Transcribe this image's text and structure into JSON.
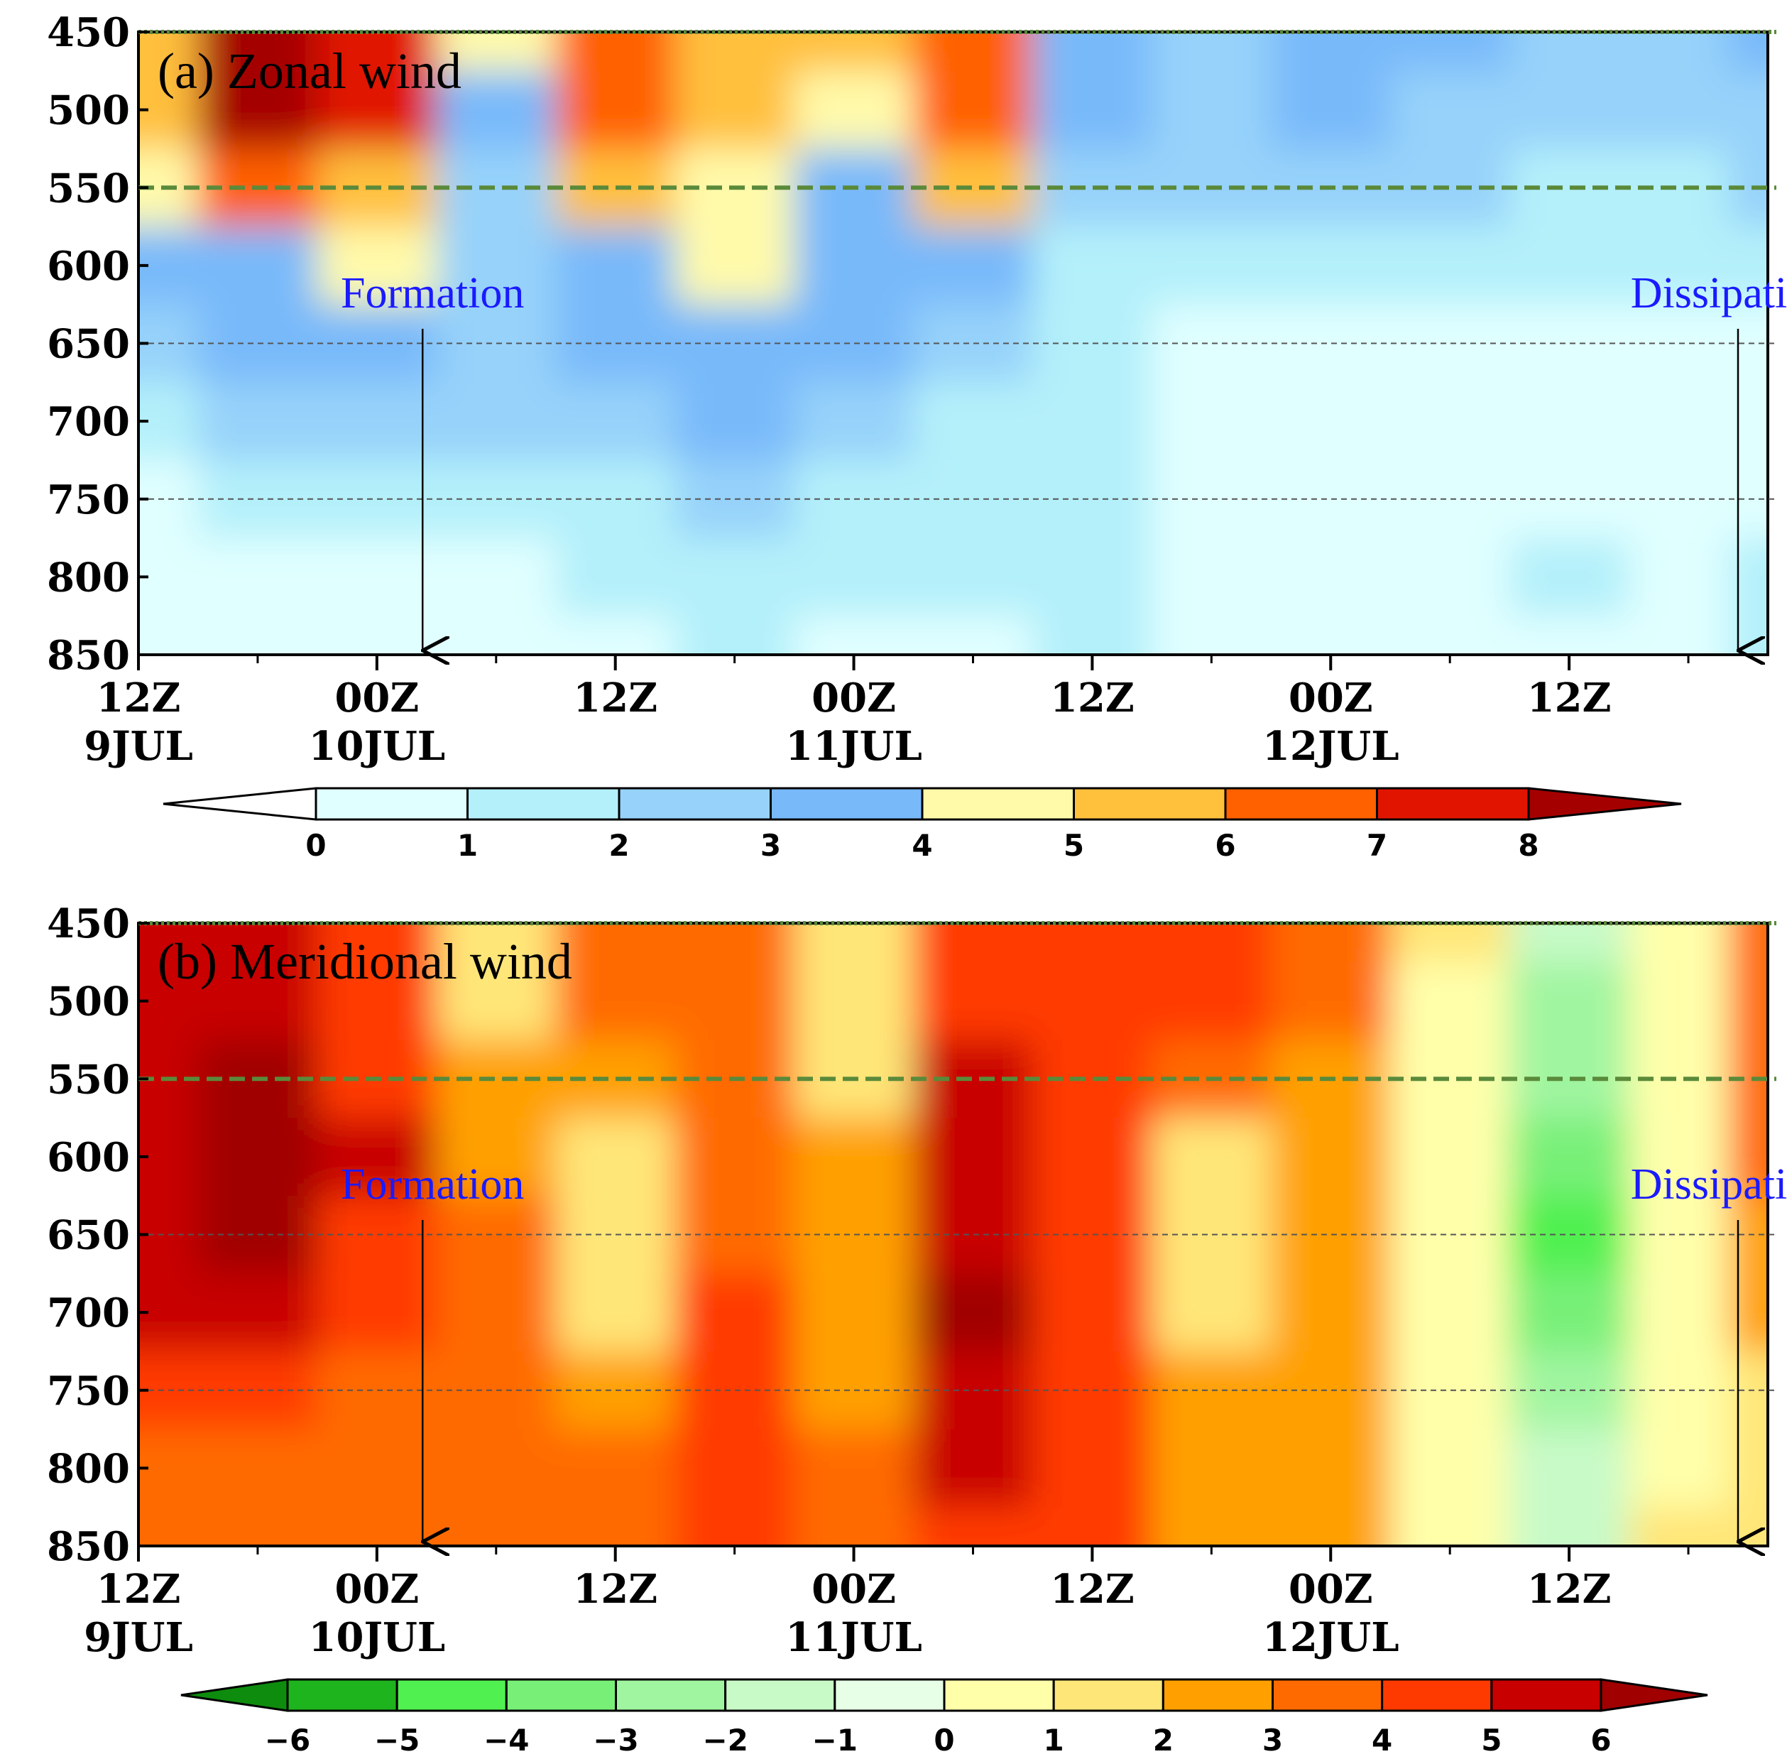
{
  "chart_data": [
    {
      "type": "heatmap",
      "title": "(a) Zonal wind",
      "xlabel": "",
      "ylabel": "",
      "y_ticks": [
        "450",
        "500",
        "550",
        "600",
        "650",
        "700",
        "750",
        "800",
        "850"
      ],
      "x_ticks": [
        {
          "time": "12Z",
          "date": "9JUL"
        },
        {
          "time": "00Z",
          "date": "10JUL"
        },
        {
          "time": "12Z",
          "date": ""
        },
        {
          "time": "00Z",
          "date": "11JUL"
        },
        {
          "time": "12Z",
          "date": ""
        },
        {
          "time": "00Z",
          "date": "12JUL"
        },
        {
          "time": "12Z",
          "date": ""
        }
      ],
      "ylim": [
        850,
        450
      ],
      "xlim_hours": [
        0,
        82
      ],
      "reference_levels": [
        450,
        550,
        650,
        750
      ],
      "annotations": [
        {
          "text": "Formation",
          "hour": 14.3
        },
        {
          "text": "Dissipation",
          "hour": 80.5
        }
      ],
      "colorbar": {
        "levels": [
          "0",
          "1",
          "2",
          "3",
          "4",
          "5",
          "6",
          "7",
          "8"
        ],
        "colors": [
          "#ffffff",
          "#e0ffff",
          "#b4f0fa",
          "#96d2fa",
          "#78b9fa",
          "#fffaaa",
          "#ffc03c",
          "#ff6000",
          "#e11400",
          "#a50000"
        ]
      },
      "hours": [
        0,
        6,
        12,
        18,
        24,
        30,
        36,
        42,
        48,
        54,
        60,
        66,
        72,
        78,
        82
      ],
      "levels_hpa": [
        450,
        500,
        550,
        600,
        650,
        700,
        750,
        800,
        850
      ],
      "values": [
        [
          5.5,
          8.0,
          7.0,
          4.0,
          6.5,
          5.0,
          5.0,
          6.5,
          3.5,
          2.8,
          3.5,
          3.0,
          2.5,
          2.5,
          3.0
        ],
        [
          5.0,
          8.3,
          7.2,
          3.5,
          6.8,
          5.5,
          4.5,
          6.2,
          3.2,
          2.5,
          3.0,
          2.6,
          2.3,
          2.2,
          2.8
        ],
        [
          4.2,
          6.0,
          5.0,
          2.8,
          5.6,
          4.8,
          3.8,
          5.0,
          2.6,
          2.0,
          2.4,
          2.0,
          1.9,
          1.8,
          2.1
        ],
        [
          3.2,
          3.6,
          4.4,
          2.0,
          3.8,
          4.3,
          3.5,
          3.6,
          1.8,
          1.2,
          1.5,
          1.3,
          1.3,
          1.1,
          1.2
        ],
        [
          2.2,
          3.0,
          3.2,
          2.0,
          3.0,
          3.2,
          3.0,
          2.2,
          1.2,
          0.6,
          0.8,
          0.9,
          0.9,
          0.8,
          0.7
        ],
        [
          1.2,
          2.0,
          2.2,
          2.0,
          2.4,
          3.2,
          2.4,
          1.6,
          1.2,
          0.3,
          0.3,
          0.7,
          0.6,
          0.8,
          0.8
        ],
        [
          0.8,
          1.5,
          1.2,
          1.4,
          1.6,
          2.0,
          1.5,
          1.2,
          1.4,
          0.2,
          0.1,
          0.3,
          0.9,
          0.7,
          0.9
        ],
        [
          0.7,
          0.8,
          0.7,
          0.9,
          1.0,
          1.1,
          1.0,
          1.0,
          1.6,
          0.5,
          0.1,
          0.4,
          1.3,
          0.6,
          1.0
        ],
        [
          0.4,
          0.5,
          0.4,
          0.6,
          0.8,
          1.0,
          0.8,
          0.8,
          1.9,
          0.8,
          0.2,
          0.3,
          0.9,
          0.8,
          1.1
        ]
      ]
    },
    {
      "type": "heatmap",
      "title": "(b) Meridional wind",
      "xlabel": "",
      "ylabel": "",
      "y_ticks": [
        "450",
        "500",
        "550",
        "600",
        "650",
        "700",
        "750",
        "800",
        "850"
      ],
      "x_ticks": [
        {
          "time": "12Z",
          "date": "9JUL"
        },
        {
          "time": "00Z",
          "date": "10JUL"
        },
        {
          "time": "12Z",
          "date": ""
        },
        {
          "time": "00Z",
          "date": "11JUL"
        },
        {
          "time": "12Z",
          "date": ""
        },
        {
          "time": "00Z",
          "date": "12JUL"
        },
        {
          "time": "12Z",
          "date": ""
        }
      ],
      "ylim": [
        850,
        450
      ],
      "xlim_hours": [
        0,
        82
      ],
      "reference_levels": [
        450,
        550,
        650,
        750
      ],
      "annotations": [
        {
          "text": "Formation",
          "hour": 14.3
        },
        {
          "text": "Dissipation",
          "hour": 80.5
        }
      ],
      "colorbar": {
        "levels": [
          "−6",
          "−5",
          "−4",
          "−3",
          "−2",
          "−1",
          "0",
          "1",
          "2",
          "3",
          "4",
          "5",
          "6"
        ],
        "colors": [
          "#0e8c0e",
          "#1eb41e",
          "#50f050",
          "#78f078",
          "#a0f5a0",
          "#c8fac8",
          "#e6ffe6",
          "#ffffaa",
          "#ffe678",
          "#ffa000",
          "#ff6a00",
          "#ff3a00",
          "#c80000",
          "#a00000"
        ]
      },
      "hours": [
        0,
        6,
        12,
        18,
        24,
        30,
        36,
        42,
        48,
        54,
        60,
        66,
        72,
        78,
        82
      ],
      "levels_hpa": [
        450,
        500,
        550,
        600,
        650,
        700,
        750,
        800,
        850
      ],
      "values": [
        [
          5.2,
          5.4,
          4.2,
          1.5,
          3.5,
          3.8,
          1.5,
          4.4,
          4.6,
          4.3,
          3.2,
          1.0,
          -1.5,
          0.5,
          3.5
        ],
        [
          5.5,
          5.8,
          4.6,
          1.8,
          3.0,
          3.6,
          1.5,
          4.8,
          4.6,
          4.2,
          3.0,
          0.6,
          -2.2,
          0.4,
          3.5
        ],
        [
          5.8,
          6.3,
          4.9,
          2.6,
          2.4,
          3.4,
          1.8,
          5.3,
          4.4,
          3.6,
          2.8,
          0.4,
          -2.8,
          0.5,
          3.2
        ],
        [
          5.9,
          6.6,
          5.0,
          2.9,
          1.5,
          3.6,
          2.3,
          5.6,
          4.1,
          1.6,
          2.6,
          0.3,
          -3.5,
          0.6,
          3.0
        ],
        [
          5.6,
          6.2,
          4.6,
          3.1,
          1.4,
          3.9,
          2.6,
          5.9,
          4.0,
          1.3,
          2.4,
          0.2,
          -4.2,
          0.7,
          2.6
        ],
        [
          5.0,
          5.7,
          4.0,
          3.3,
          1.8,
          4.2,
          2.8,
          6.2,
          4.2,
          1.6,
          2.2,
          0.2,
          -3.5,
          0.8,
          2.2
        ],
        [
          4.4,
          4.7,
          3.4,
          3.4,
          2.6,
          4.4,
          2.9,
          5.8,
          4.4,
          2.0,
          2.0,
          0.3,
          -2.4,
          0.9,
          1.8
        ],
        [
          3.8,
          3.7,
          3.1,
          3.4,
          3.2,
          4.6,
          3.0,
          5.4,
          4.6,
          2.4,
          2.0,
          0.4,
          -1.6,
          0.9,
          1.6
        ],
        [
          3.6,
          3.4,
          3.0,
          3.3,
          3.3,
          4.5,
          3.0,
          4.8,
          4.4,
          2.6,
          2.0,
          0.6,
          -1.2,
          1.0,
          1.5
        ]
      ]
    }
  ]
}
